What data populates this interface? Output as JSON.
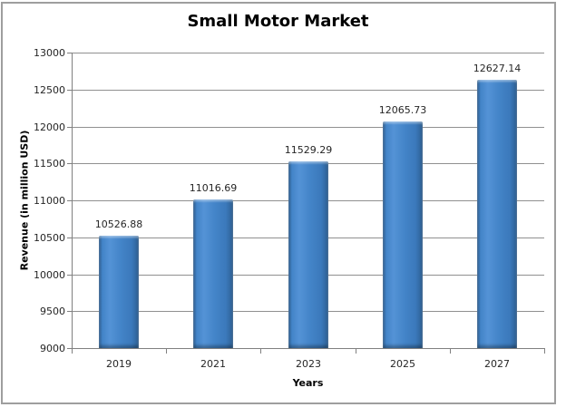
{
  "chart_data": {
    "type": "bar",
    "title": "Small Motor Market",
    "categories": [
      "2019",
      "2021",
      "2023",
      "2025",
      "2027"
    ],
    "values": [
      10526.88,
      11016.69,
      11529.29,
      12065.73,
      12627.14
    ],
    "value_labels": [
      "10526.88",
      "11016.69",
      "11529.29",
      "12065.73",
      "12627.14"
    ],
    "xlabel": "Years",
    "ylabel": "Revenue (in million USD)",
    "ylim": [
      9000,
      13000
    ],
    "ytick_step": 500,
    "ytick_labels": [
      "13000",
      "12500",
      "12000",
      "11500",
      "11000",
      "10500",
      "10000",
      "9500",
      "9000"
    ],
    "grid": true,
    "legend": "none",
    "colors": {
      "bar_edge": "#2e6093",
      "bar_mid": "#4384c8",
      "bar_light": "#5493d6",
      "grid": "#909090",
      "axis": "#808080",
      "tick_text": "#262626",
      "title_text": "#000000",
      "frame_border": "#9e9e9e"
    }
  }
}
